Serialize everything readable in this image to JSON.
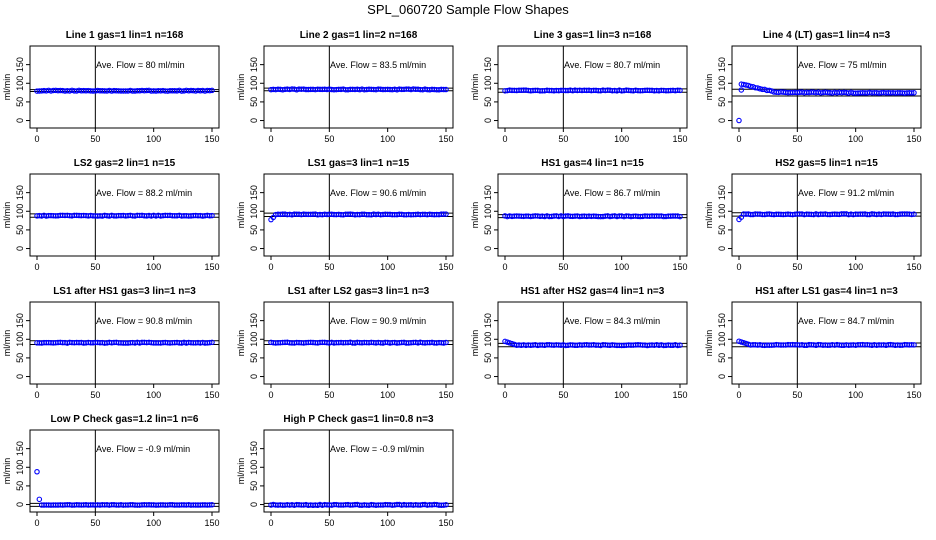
{
  "figure_title": "SPL_060720  Sample Flow Shapes",
  "colors": {
    "points": "#0000ff",
    "axes": "#000000",
    "background": "#ffffff"
  },
  "chart_data": [
    {
      "type": "scatter",
      "title": "Line 1 gas=1 lin=1 n=168",
      "ylabel": "ml/min",
      "annotation": "Ave. Flow =  80  ml/min",
      "xlim": [
        0,
        150
      ],
      "ylim": [
        -20,
        200
      ],
      "xticks": [
        "0",
        "50",
        "100",
        "150"
      ],
      "yticks": [
        "0",
        "50",
        "100",
        "150"
      ],
      "vline_x": 50,
      "hlines": [
        83,
        78
      ],
      "shape": "flat",
      "level": 80
    },
    {
      "type": "scatter",
      "title": "Line 2 gas=1 lin=2 n=168",
      "ylabel": "ml/min",
      "annotation": "Ave. Flow =  83.5  ml/min",
      "xlim": [
        0,
        150
      ],
      "ylim": [
        -20,
        200
      ],
      "xticks": [
        "0",
        "50",
        "100",
        "150"
      ],
      "yticks": [
        "0",
        "50",
        "100",
        "150"
      ],
      "vline_x": 50,
      "hlines": [
        87,
        80
      ],
      "shape": "flat",
      "level": 83.5
    },
    {
      "type": "scatter",
      "title": "Line 3 gas=1 lin=3 n=168",
      "ylabel": "ml/min",
      "annotation": "Ave. Flow =  80.7  ml/min",
      "xlim": [
        0,
        150
      ],
      "ylim": [
        -20,
        200
      ],
      "xticks": [
        "0",
        "50",
        "100",
        "150"
      ],
      "yticks": [
        "0",
        "50",
        "100",
        "150"
      ],
      "vline_x": 50,
      "hlines": [
        85,
        76
      ],
      "shape": "flat",
      "level": 80.7
    },
    {
      "type": "scatter",
      "title": "Line 4 (LT) gas=1 lin=4 n=3",
      "ylabel": "ml/min",
      "annotation": "Ave. Flow =  75  ml/min",
      "xlim": [
        0,
        150
      ],
      "ylim": [
        -20,
        200
      ],
      "xticks": [
        "0",
        "50",
        "100",
        "150"
      ],
      "yticks": [
        "0",
        "50",
        "100",
        "150"
      ],
      "vline_x": 50,
      "hlines": [
        84,
        66
      ],
      "shape": "lt",
      "level": 75
    },
    {
      "type": "scatter",
      "title": "LS2 gas=2 lin=1 n=15",
      "ylabel": "ml/min",
      "annotation": "Ave. Flow =  88.2  ml/min",
      "xlim": [
        0,
        150
      ],
      "ylim": [
        -20,
        200
      ],
      "xticks": [
        "0",
        "50",
        "100",
        "150"
      ],
      "yticks": [
        "0",
        "50",
        "100",
        "150"
      ],
      "vline_x": 50,
      "hlines": [
        93,
        84
      ],
      "shape": "flat",
      "level": 88.2
    },
    {
      "type": "scatter",
      "title": "LS1 gas=3 lin=1 n=15",
      "ylabel": "ml/min",
      "annotation": "Ave. Flow =  90.6  ml/min",
      "xlim": [
        0,
        150
      ],
      "ylim": [
        -20,
        200
      ],
      "xticks": [
        "0",
        "50",
        "100",
        "150"
      ],
      "yticks": [
        "0",
        "50",
        "100",
        "150"
      ],
      "vline_x": 50,
      "hlines": [
        95,
        86
      ],
      "shape": "rise",
      "level": 91.5
    },
    {
      "type": "scatter",
      "title": "HS1 gas=4 lin=1 n=15",
      "ylabel": "ml/min",
      "annotation": "Ave. Flow =  86.7  ml/min",
      "xlim": [
        0,
        150
      ],
      "ylim": [
        -20,
        200
      ],
      "xticks": [
        "0",
        "50",
        "100",
        "150"
      ],
      "yticks": [
        "0",
        "50",
        "100",
        "150"
      ],
      "vline_x": 50,
      "hlines": [
        91,
        83
      ],
      "shape": "flat",
      "level": 86.7
    },
    {
      "type": "scatter",
      "title": "HS2 gas=5 lin=1 n=15",
      "ylabel": "ml/min",
      "annotation": "Ave. Flow =  91.2  ml/min",
      "xlim": [
        0,
        150
      ],
      "ylim": [
        -20,
        200
      ],
      "xticks": [
        "0",
        "50",
        "100",
        "150"
      ],
      "yticks": [
        "0",
        "50",
        "100",
        "150"
      ],
      "vline_x": 50,
      "hlines": [
        96,
        87
      ],
      "shape": "rise",
      "level": 92
    },
    {
      "type": "scatter",
      "title": "LS1 after HS1 gas=3 lin=1 n=3",
      "ylabel": "ml/min",
      "annotation": "Ave. Flow =  90.8  ml/min",
      "xlim": [
        0,
        150
      ],
      "ylim": [
        -20,
        200
      ],
      "xticks": [
        "0",
        "50",
        "100",
        "150"
      ],
      "yticks": [
        "0",
        "50",
        "100",
        "150"
      ],
      "vline_x": 50,
      "hlines": [
        96,
        86
      ],
      "shape": "flat",
      "level": 90.8
    },
    {
      "type": "scatter",
      "title": "LS1 after LS2 gas=3 lin=1 n=3",
      "ylabel": "ml/min",
      "annotation": "Ave. Flow =  90.9  ml/min",
      "xlim": [
        0,
        150
      ],
      "ylim": [
        -20,
        200
      ],
      "xticks": [
        "0",
        "50",
        "100",
        "150"
      ],
      "yticks": [
        "0",
        "50",
        "100",
        "150"
      ],
      "vline_x": 50,
      "hlines": [
        96,
        86
      ],
      "shape": "flat",
      "level": 90.9
    },
    {
      "type": "scatter",
      "title": "HS1 after HS2 gas=4 lin=1 n=3",
      "ylabel": "ml/min",
      "annotation": "Ave. Flow =  84.3  ml/min",
      "xlim": [
        0,
        150
      ],
      "ylim": [
        -20,
        200
      ],
      "xticks": [
        "0",
        "50",
        "100",
        "150"
      ],
      "yticks": [
        "0",
        "50",
        "100",
        "150"
      ],
      "vline_x": 50,
      "hlines": [
        89,
        80
      ],
      "shape": "fall",
      "level": 84.3
    },
    {
      "type": "scatter",
      "title": "HS1 after LS1 gas=4 lin=1 n=3",
      "ylabel": "ml/min",
      "annotation": "Ave. Flow =  84.7  ml/min",
      "xlim": [
        0,
        150
      ],
      "ylim": [
        -20,
        200
      ],
      "xticks": [
        "0",
        "50",
        "100",
        "150"
      ],
      "yticks": [
        "0",
        "50",
        "100",
        "150"
      ],
      "vline_x": 50,
      "hlines": [
        90,
        80
      ],
      "shape": "fall",
      "level": 84.7
    },
    {
      "type": "scatter",
      "title": "Low P Check gas=1.2 lin=1 n=6",
      "ylabel": "ml/min",
      "annotation": "Ave. Flow =  -0.9  ml/min",
      "xlim": [
        0,
        150
      ],
      "ylim": [
        -20,
        200
      ],
      "xticks": [
        "0",
        "50",
        "100",
        "150"
      ],
      "yticks": [
        "0",
        "50",
        "100",
        "150"
      ],
      "vline_x": 50,
      "hlines": [
        3,
        -5
      ],
      "shape": "lowp",
      "level": -0.9
    },
    {
      "type": "scatter",
      "title": "High P Check gas=1 lin=0.8 n=3",
      "ylabel": "ml/min",
      "annotation": "Ave. Flow =  -0.9  ml/min",
      "xlim": [
        0,
        150
      ],
      "ylim": [
        -20,
        200
      ],
      "xticks": [
        "0",
        "50",
        "100",
        "150"
      ],
      "yticks": [
        "0",
        "50",
        "100",
        "150"
      ],
      "vline_x": 50,
      "hlines": [
        3,
        -5
      ],
      "shape": "flat",
      "level": -0.9
    }
  ]
}
